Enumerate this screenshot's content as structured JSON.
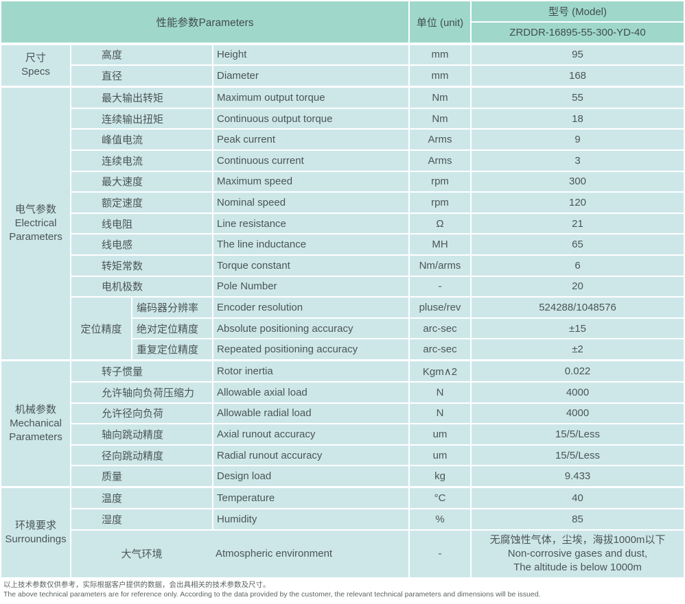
{
  "colors": {
    "header_bg": "#9fd8cb",
    "cell_bg": "#cde7e9",
    "text": "#4b5455",
    "header_text": "#414c4c"
  },
  "header": {
    "parameters": "性能参数Parameters",
    "unit": "单位 (unit)",
    "model_label": "型号 (Model)",
    "model_value": "ZRDDR-16895-55-300-YD-40"
  },
  "sections": [
    {
      "id": "specs",
      "group_cn": "尺寸",
      "group_en": "Specs",
      "rows": [
        {
          "cn": "高度",
          "en": "Height",
          "unit": "mm",
          "value": "95"
        },
        {
          "cn": "直径",
          "en": "Diameter",
          "unit": "mm",
          "value": "168"
        }
      ]
    },
    {
      "id": "electrical",
      "group_cn": "电气参数",
      "group_en": "Electrical Parameters",
      "rows": [
        {
          "cn": "最大输出转矩",
          "en": "Maximum output torque",
          "unit": "Nm",
          "value": "55"
        },
        {
          "cn": "连续输出扭矩",
          "en": "Continuous output torque",
          "unit": "Nm",
          "value": "18"
        },
        {
          "cn": "峰值电流",
          "en": "Peak current",
          "unit": "Arms",
          "value": "9"
        },
        {
          "cn": "连续电流",
          "en": "Continuous current",
          "unit": "Arms",
          "value": "3"
        },
        {
          "cn": "最大速度",
          "en": "Maximum speed",
          "unit": "rpm",
          "value": "300"
        },
        {
          "cn": "额定速度",
          "en": "Nominal speed",
          "unit": "rpm",
          "value": "120"
        },
        {
          "cn": "线电阻",
          "en": "Line resistance",
          "unit": "Ω",
          "value": "21"
        },
        {
          "cn": "线电感",
          "en": "The line inductance",
          "unit": "MH",
          "value": "65"
        },
        {
          "cn": "转矩常数",
          "en": "Torque constant",
          "unit": "Nm/arms",
          "value": "6"
        },
        {
          "cn": "电机极数",
          "en": "Pole Number",
          "unit": "-",
          "value": "20"
        }
      ],
      "subgroup": {
        "label": "定位精度",
        "rows": [
          {
            "cn": "编码器分辨率",
            "en": "Encoder resolution",
            "unit": "pluse/rev",
            "value": "524288/1048576"
          },
          {
            "cn": "绝对定位精度",
            "en": "Absolute positioning accuracy",
            "unit": "arc-sec",
            "value": "±15"
          },
          {
            "cn": "重复定位精度",
            "en": "Repeated positioning accuracy",
            "unit": "arc-sec",
            "value": "±2"
          }
        ]
      }
    },
    {
      "id": "mechanical",
      "group_cn": "机械参数",
      "group_en": "Mechanical Parameters",
      "rows": [
        {
          "cn": "转子惯量",
          "en": "Rotor inertia",
          "unit": "Kgm∧2",
          "value": "0.022"
        },
        {
          "cn": "允许轴向负荷压缩力",
          "en": "Allowable axial load",
          "unit": "N",
          "value": "4000"
        },
        {
          "cn": "允许径向负荷",
          "en": "Allowable radial load",
          "unit": "N",
          "value": "4000"
        },
        {
          "cn": "轴向跳动精度",
          "en": "Axial runout accuracy",
          "unit": "um",
          "value": "15/5/Less"
        },
        {
          "cn": "径向跳动精度",
          "en": "Radial runout accuracy",
          "unit": "um",
          "value": "15/5/Less"
        },
        {
          "cn": "质量",
          "en": "Design load",
          "unit": "kg",
          "value": "9.433"
        }
      ]
    },
    {
      "id": "surroundings",
      "group_cn": "环境要求",
      "group_en": "Surroundings",
      "rows": [
        {
          "cn": "温度",
          "en": "Temperature",
          "unit": "°C",
          "value": "40"
        },
        {
          "cn": "湿度",
          "en": "Humidity",
          "unit": "%",
          "value": "85"
        }
      ],
      "tall_row": {
        "cn": "大气环境",
        "en": "Atmospheric environment",
        "unit": "-",
        "value_lines": [
          "无腐蚀性气体，尘埃，海拔1000m以下",
          "Non-corrosive gases and dust,",
          "The altitude is below 1000m"
        ]
      }
    }
  ],
  "footer": {
    "cn": "以上技术参数仅供参考，实际根据客户提供的数据，会出具相关的技术参数及尺寸。",
    "en": "The above technical parameters are for reference only. According to the data provided by the customer, the relevant technical parameters and dimensions will be issued."
  }
}
